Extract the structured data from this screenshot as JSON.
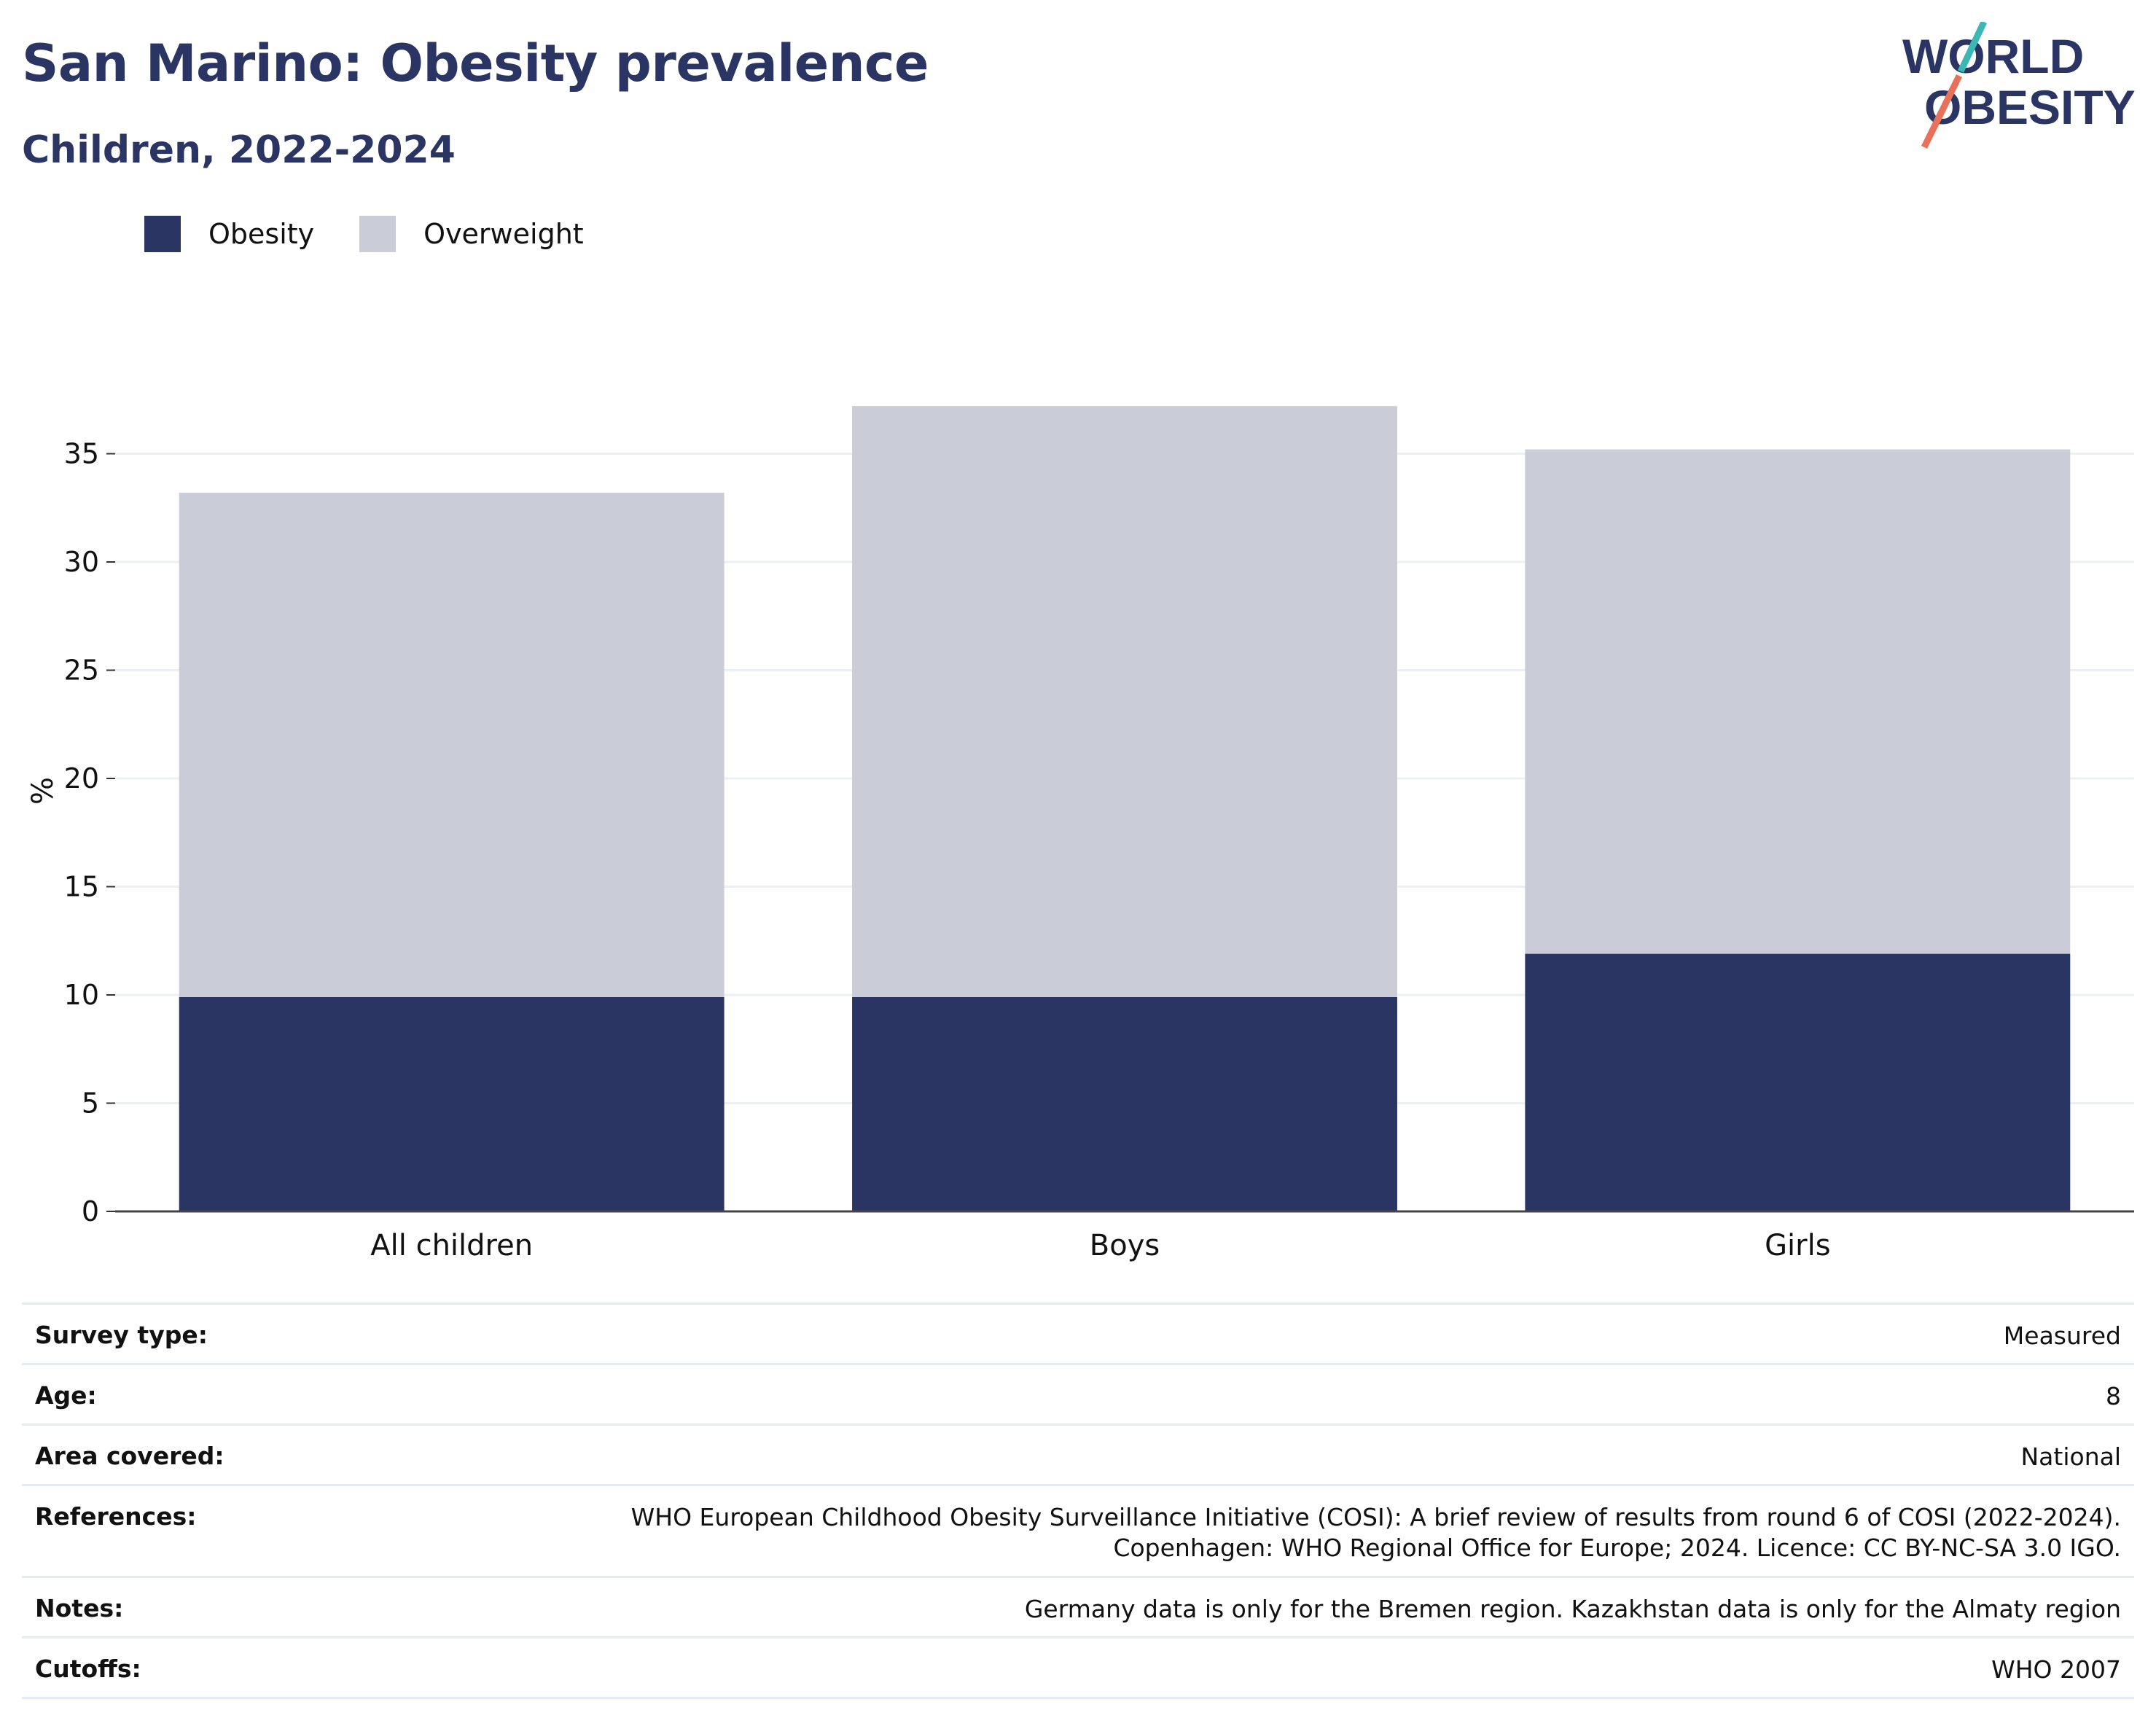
{
  "header": {
    "title": "San Marino: Obesity prevalence",
    "subtitle": "Children, 2022-2024",
    "logo_line1": "WORLD",
    "logo_line2": "OBESITY"
  },
  "legend": [
    {
      "label": "Obesity",
      "color": "#2a3563"
    },
    {
      "label": "Overweight",
      "color": "#cacdd8"
    }
  ],
  "chart_data": {
    "type": "bar",
    "stacked": true,
    "categories": [
      "All children",
      "Boys",
      "Girls"
    ],
    "series": [
      {
        "name": "Obesity",
        "color": "#2a3563",
        "values": [
          9.9,
          9.9,
          11.9
        ]
      },
      {
        "name": "Overweight",
        "color": "#cacdd8",
        "values": [
          23.3,
          27.3,
          23.3
        ]
      }
    ],
    "ylabel": "%",
    "ylim": [
      0,
      37.5
    ],
    "yticks": [
      0,
      5,
      10,
      15,
      20,
      25,
      30,
      35
    ],
    "grid": true,
    "legend_position": "top-left"
  },
  "meta": [
    {
      "key": "Survey type:",
      "value": "Measured"
    },
    {
      "key": "Age:",
      "value": "8"
    },
    {
      "key": "Area covered:",
      "value": "National"
    },
    {
      "key": "References:",
      "value": "WHO European Childhood Obesity Surveillance Initiative (COSI): A brief review of results from round 6 of COSI (2022-2024).",
      "value2": "Copenhagen: WHO Regional Office for Europe; 2024. Licence: CC BY-NC-SA 3.0 IGO."
    },
    {
      "key": "Notes:",
      "value": "Germany data is only for the Bremen region. Kazakhstan data is only for the Almaty region"
    },
    {
      "key": "Cutoffs:",
      "value": "WHO 2007"
    }
  ]
}
